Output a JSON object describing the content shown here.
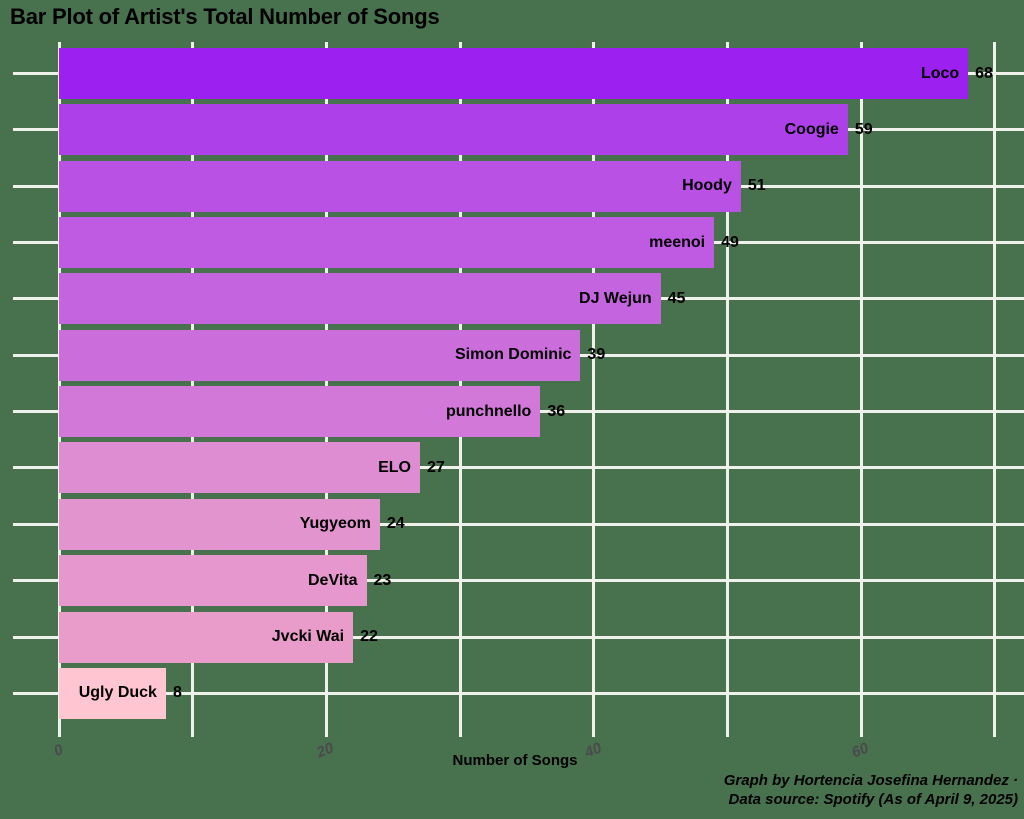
{
  "title": "Bar Plot of Artist's Total Number of Songs",
  "xlabel": "Number of Songs",
  "caption": {
    "line1": "Graph by Hortencia Josefina Hernandez ·",
    "line2": "Data source: Spotify (As of April 9, 2025)"
  },
  "colors": {
    "background": "#48714E",
    "gridline": "#EFF1EB",
    "tick_label": "#4A4A4F",
    "text": "#000000"
  },
  "chart_data": {
    "type": "bar",
    "orientation": "horizontal",
    "title": "Bar Plot of Artist's Total Number of Songs",
    "xlabel": "Number of Songs",
    "ylabel": "",
    "xlim": [
      0,
      70
    ],
    "grid_step": 10,
    "x_ticks": [
      0,
      20,
      40,
      60
    ],
    "grid": "on",
    "legend": "none",
    "categories": [
      "Loco",
      "Coogie",
      "Hoody",
      "meenoi",
      "DJ Wejun",
      "Simon Dominic",
      "punchnello",
      "ELO",
      "Yugyeom",
      "DeVita",
      "Jvcki Wai",
      "Ugly Duck"
    ],
    "values": [
      68,
      59,
      51,
      49,
      45,
      39,
      36,
      27,
      24,
      23,
      22,
      8
    ],
    "bar_colors": [
      "#9C20F0",
      "#AD40E9",
      "#B951E5",
      "#BF5AE2",
      "#C564DF",
      "#CB6EDC",
      "#D278D8",
      "#DE8DD2",
      "#E294CF",
      "#E697CD",
      "#E99CCA",
      "#FFC6D1"
    ]
  }
}
